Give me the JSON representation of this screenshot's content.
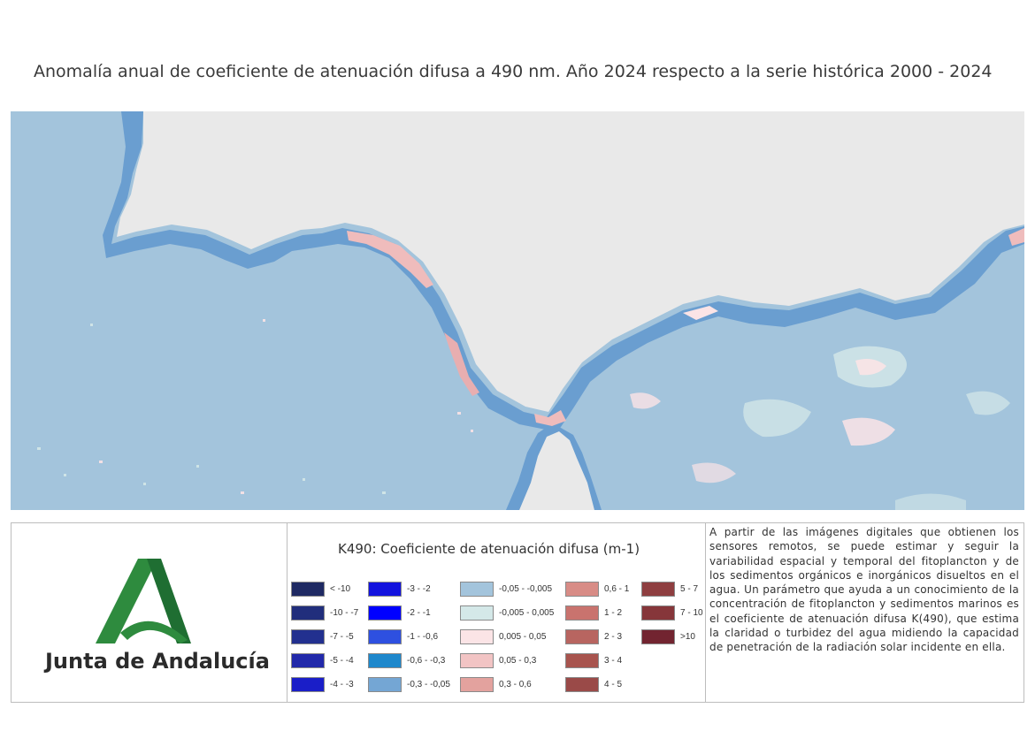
{
  "page": {
    "title": "Anomalía anual de coeficiente de atenuación difusa a 490 nm. Año 2024 respecto a la serie histórica 2000 - 2024"
  },
  "map": {
    "land_color": "#e9e9e9",
    "sea_color": "#a3c4dc",
    "coastal_negative_color": "#6a9ed0",
    "coastal_positive_color": "#efbcbc"
  },
  "logo": {
    "text": "Junta de Andalucía",
    "color": "#2e8b3e"
  },
  "legend": {
    "title": "K490: Coeficiente de atenuación difusa (m-1)",
    "columns": [
      [
        {
          "label": "< -10",
          "color": "#1f2a63"
        },
        {
          "label": "-10 - -7",
          "color": "#212e7c"
        },
        {
          "label": "-7 - -5",
          "color": "#22308f"
        },
        {
          "label": "-5 - -4",
          "color": "#2229aa"
        },
        {
          "label": "-4 - -3",
          "color": "#1a1ec8"
        }
      ],
      [
        {
          "label": "-3 - -2",
          "color": "#1313de"
        },
        {
          "label": "-2 - -1",
          "color": "#0000ff"
        },
        {
          "label": "-1 - -0,6",
          "color": "#2e50e0"
        },
        {
          "label": "-0,6 - -0,3",
          "color": "#1e88cc"
        },
        {
          "label": "-0,3 - -0,05",
          "color": "#74a6d4"
        }
      ],
      [
        {
          "label": "-0,05 - -0,005",
          "color": "#a3c4dc"
        },
        {
          "label": "-0,005 - 0,005",
          "color": "#d4e8e8"
        },
        {
          "label": "0,005 - 0,05",
          "color": "#fbe4e6"
        },
        {
          "label": "0,05 - 0,3",
          "color": "#f2c4c4"
        },
        {
          "label": "0,3 - 0,6",
          "color": "#e3a29e"
        }
      ],
      [
        {
          "label": "0,6 - 1",
          "color": "#d88c86"
        },
        {
          "label": "1 - 2",
          "color": "#c9736e"
        },
        {
          "label": "2 - 3",
          "color": "#b86560"
        },
        {
          "label": "3 - 4",
          "color": "#a8544e"
        },
        {
          "label": "4 - 5",
          "color": "#9a4a48"
        }
      ],
      [
        {
          "label": "5 - 7",
          "color": "#8e3e40"
        },
        {
          "label": "7 - 10",
          "color": "#86363a"
        },
        {
          "label": ">10",
          "color": "#722430"
        }
      ]
    ]
  },
  "description": {
    "text": "A partir de las imágenes digitales que obtienen los sensores remotos, se puede estimar y seguir la variabilidad espacial y temporal del fitoplancton y de los sedimentos orgánicos e inorgánicos disueltos en el agua. Un parámetro que ayuda a un conocimiento de la concentración de fitoplancton y sedimentos marinos es el coeficiente de atenuación difusa K(490), que estima la claridad o turbidez del agua midiendo la capacidad de penetración de la radiación solar incidente en ella."
  }
}
